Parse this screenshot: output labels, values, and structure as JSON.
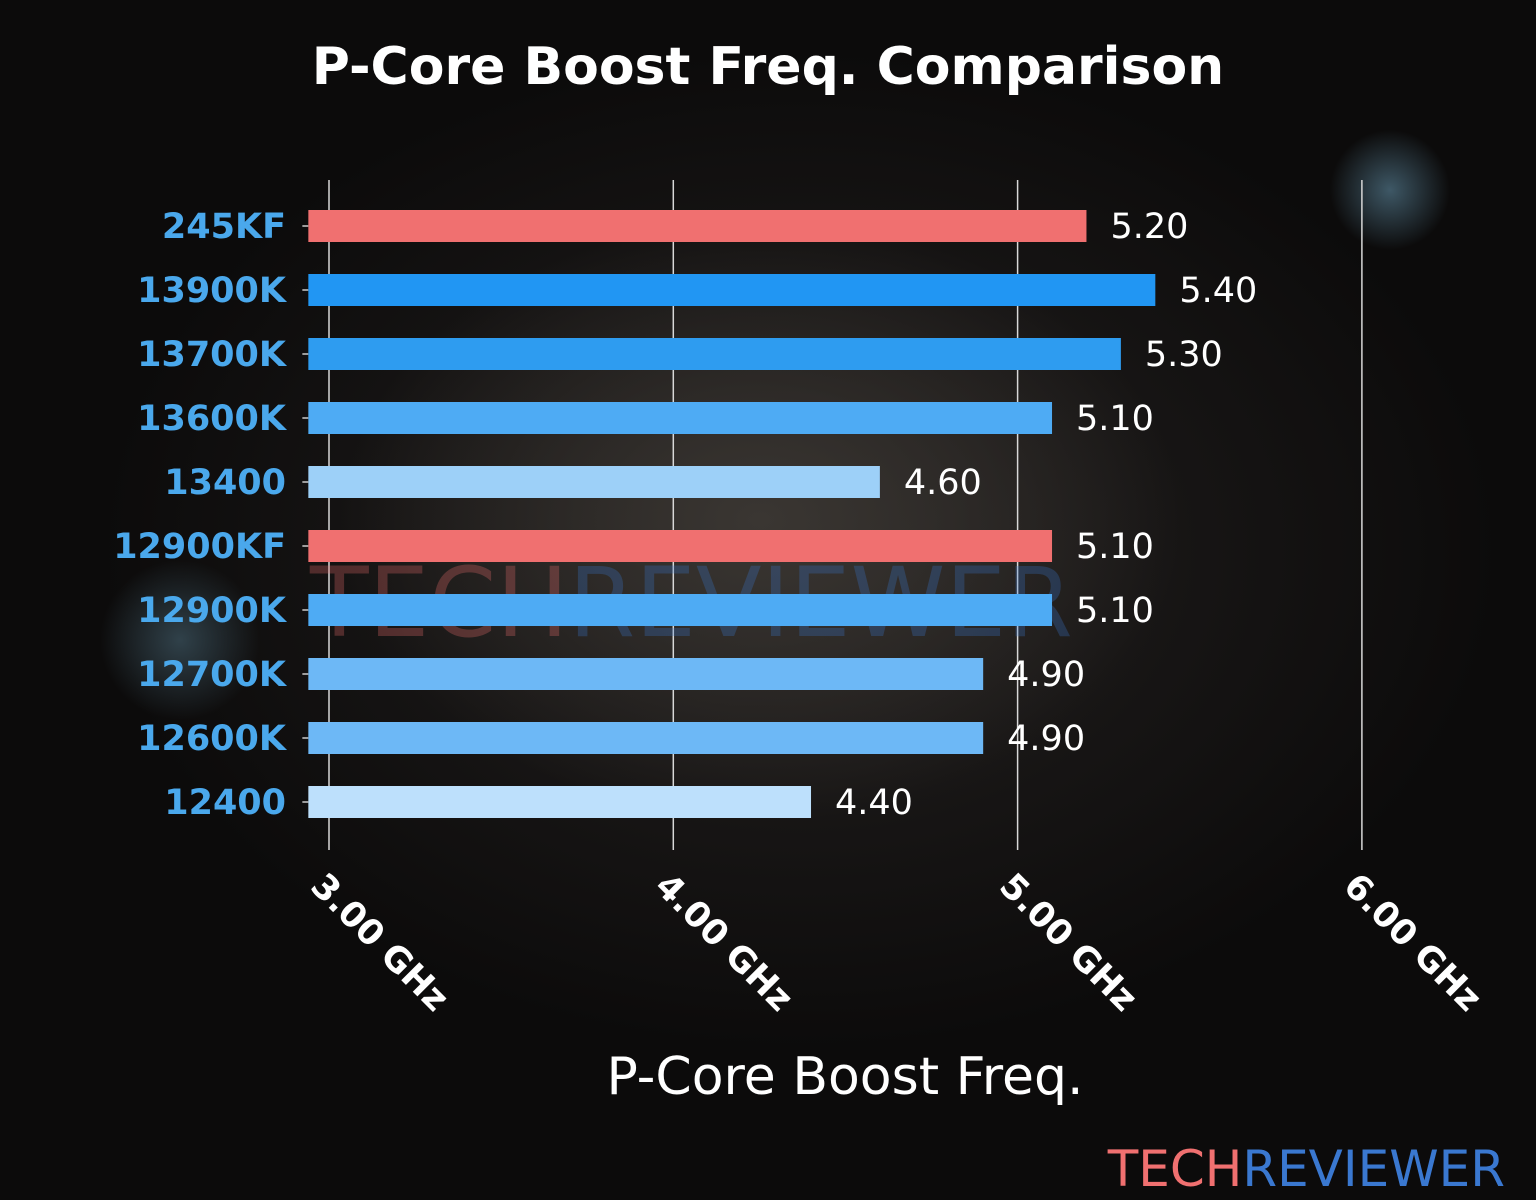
{
  "chart_data": {
    "type": "bar",
    "orientation": "horizontal",
    "title": "P-Core Boost Freq. Comparison",
    "xlabel": "P-Core Boost Freq.",
    "ylabel": "",
    "categories": [
      "245KF",
      "13900K",
      "13700K",
      "13600K",
      "13400",
      "12900KF",
      "12900K",
      "12700K",
      "12600K",
      "12400"
    ],
    "values": [
      5.2,
      5.4,
      5.3,
      5.1,
      4.6,
      5.1,
      5.1,
      4.9,
      4.9,
      4.4
    ],
    "value_labels": [
      "5.20",
      "5.40",
      "5.30",
      "5.10",
      "4.60",
      "5.10",
      "5.10",
      "4.90",
      "4.90",
      "4.40"
    ],
    "colors": [
      "#f07070",
      "#2196f3",
      "#2e9cf0",
      "#4eabf4",
      "#9dd0f8",
      "#f07070",
      "#4eabf4",
      "#6db8f6",
      "#6db8f6",
      "#bde0fc"
    ],
    "xticks": [
      3,
      4,
      5,
      6
    ],
    "xtick_labels": [
      "3.00 GHz",
      "4.00 GHz",
      "5.00 GHz",
      "6.00 GHz"
    ],
    "xlim": [
      2.94,
      6.0
    ],
    "grid": "vertical",
    "category_label_color": "#4aa8ec"
  },
  "watermark": {
    "part1": "TECH",
    "part2": "REVIEWER",
    "color1": "#f07070",
    "color2": "#3a78d0"
  }
}
